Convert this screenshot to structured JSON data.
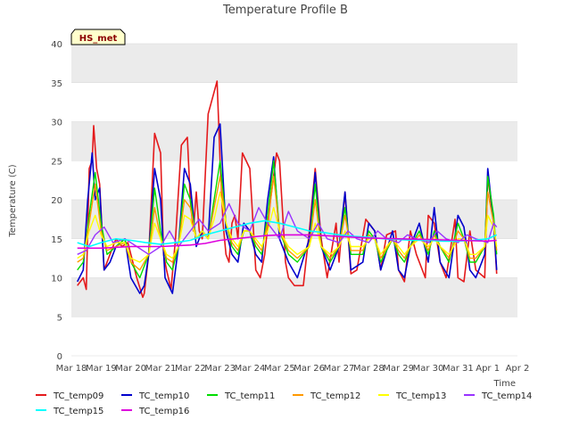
{
  "chart_data": {
    "type": "line",
    "title": "Temperature Profile B",
    "xlabel": "Time",
    "ylabel": "Temperature (C)",
    "badge": "HS_met",
    "ylim": [
      0,
      40
    ],
    "yticks": [
      0,
      5,
      10,
      15,
      20,
      25,
      30,
      35,
      40
    ],
    "xlim": [
      0,
      15
    ],
    "xticks": [
      "Mar 18",
      "Mar 19",
      "Mar 20",
      "Mar 21",
      "Mar 22",
      "Mar 23",
      "Mar 24",
      "Mar 25",
      "Mar 26",
      "Mar 27",
      "Mar 28",
      "Mar 29",
      "Mar 30",
      "Mar 31",
      "Apr 1",
      "Apr 2"
    ],
    "grid": "horizontal bands",
    "legend_position": "bottom",
    "series": [
      {
        "name": "TC_temp09",
        "color": "#e41a1c",
        "width": 1.6,
        "x": [
          0.2,
          0.4,
          0.5,
          0.6,
          0.7,
          0.75,
          0.85,
          0.95,
          1.1,
          1.3,
          1.5,
          1.7,
          1.9,
          2.2,
          2.4,
          2.45,
          2.6,
          2.8,
          3.0,
          3.1,
          3.2,
          3.35,
          3.5,
          3.7,
          3.9,
          4.0,
          4.1,
          4.2,
          4.3,
          4.4,
          4.6,
          4.9,
          5.0,
          5.1,
          5.2,
          5.3,
          5.4,
          5.5,
          5.6,
          5.75,
          6.0,
          6.2,
          6.35,
          6.5,
          6.7,
          6.9,
          7.0,
          7.2,
          7.3,
          7.5,
          7.8,
          8.0,
          8.2,
          8.4,
          8.6,
          8.9,
          9.0,
          9.2,
          9.4,
          9.6,
          9.9,
          10.2,
          10.4,
          10.6,
          10.9,
          11.0,
          11.2,
          11.4,
          11.6,
          11.9,
          12.0,
          12.2,
          12.4,
          12.6,
          12.9,
          13.0,
          13.2,
          13.4,
          13.6,
          13.9,
          14.0,
          14.2,
          14.3
        ],
        "y": [
          9,
          10,
          8.5,
          24,
          25,
          29.5,
          24,
          22,
          11,
          13,
          15,
          14,
          14.5,
          10,
          7.5,
          8,
          13,
          28.5,
          26,
          13,
          11,
          8.5,
          15,
          27,
          28,
          20,
          16,
          21,
          16,
          15,
          31,
          35.2,
          25,
          17,
          13,
          12,
          17,
          18,
          15,
          26,
          24,
          11,
          10,
          13,
          20,
          26,
          25,
          12,
          10,
          9,
          9,
          16,
          24,
          15,
          10,
          17,
          12,
          21,
          10.5,
          11,
          17.5,
          16,
          11,
          15.5,
          16,
          11,
          9.5,
          16,
          13,
          10,
          18,
          17,
          12,
          10,
          17.5,
          10,
          9.5,
          16,
          11,
          10,
          23,
          17,
          10.5
        ]
      },
      {
        "name": "TC_temp10",
        "color": "#0000cc",
        "width": 1.6,
        "x": [
          0.2,
          0.4,
          0.55,
          0.7,
          0.8,
          0.95,
          1.1,
          1.3,
          1.5,
          1.8,
          2.0,
          2.3,
          2.45,
          2.6,
          2.8,
          3.0,
          3.15,
          3.4,
          3.6,
          3.8,
          4.0,
          4.2,
          4.4,
          4.6,
          4.8,
          5.0,
          5.2,
          5.4,
          5.6,
          5.8,
          6.0,
          6.2,
          6.4,
          6.6,
          6.8,
          7.0,
          7.3,
          7.6,
          8.0,
          8.2,
          8.4,
          8.7,
          9.0,
          9.2,
          9.4,
          9.8,
          10.0,
          10.2,
          10.4,
          10.8,
          11.0,
          11.2,
          11.4,
          11.7,
          12.0,
          12.2,
          12.4,
          12.7,
          13.0,
          13.2,
          13.4,
          13.6,
          13.9,
          14.0,
          14.2,
          14.3
        ],
        "y": [
          9.5,
          11,
          20,
          26,
          20,
          21.5,
          11,
          12,
          14,
          15,
          10,
          8,
          9,
          13,
          24,
          20,
          10,
          8,
          14,
          24,
          22,
          14,
          16,
          15,
          28,
          29.7,
          16,
          13,
          12,
          17,
          16,
          13,
          12,
          20,
          25.5,
          15,
          12,
          10,
          15,
          23.5,
          14,
          11,
          14,
          21,
          11,
          12,
          17,
          16,
          11,
          16,
          11,
          10,
          14,
          17,
          12,
          19,
          12,
          10,
          18,
          16.5,
          11,
          10,
          13,
          24,
          17,
          11
        ]
      },
      {
        "name": "TC_temp11",
        "color": "#00dd00",
        "width": 1.4,
        "x": [
          0.2,
          0.4,
          0.6,
          0.8,
          1.0,
          1.2,
          1.5,
          1.8,
          2.0,
          2.3,
          2.6,
          2.8,
          3.0,
          3.2,
          3.4,
          3.6,
          3.8,
          4.0,
          4.2,
          4.4,
          4.6,
          4.8,
          5.0,
          5.2,
          5.4,
          5.6,
          5.8,
          6.0,
          6.2,
          6.4,
          6.6,
          6.8,
          7.0,
          7.3,
          7.6,
          8.0,
          8.2,
          8.4,
          8.7,
          9.0,
          9.2,
          9.4,
          9.8,
          10.0,
          10.2,
          10.4,
          10.8,
          11.0,
          11.2,
          11.4,
          11.7,
          12.0,
          12.2,
          12.4,
          12.7,
          13.0,
          13.2,
          13.4,
          13.6,
          13.9,
          14.0,
          14.2,
          14.3
        ],
        "y": [
          11,
          12,
          18,
          23.5,
          17,
          13,
          14,
          15,
          12,
          10,
          13,
          21.5,
          16,
          12,
          11,
          14,
          22,
          20,
          15,
          16,
          15,
          20,
          25,
          17,
          14,
          13,
          16,
          16,
          14,
          13,
          18,
          25,
          16,
          13,
          12,
          14,
          22,
          14,
          12,
          14,
          19,
          13,
          13,
          16,
          15,
          12,
          15,
          13,
          12,
          14,
          16,
          13,
          16,
          14,
          12,
          17,
          15,
          12,
          12,
          14,
          23,
          18,
          13
        ]
      },
      {
        "name": "TC_temp12",
        "color": "#ff9900",
        "width": 1.4,
        "x": [
          0.2,
          0.4,
          0.6,
          0.8,
          1.0,
          1.2,
          1.5,
          1.8,
          2.0,
          2.3,
          2.6,
          2.8,
          3.0,
          3.2,
          3.4,
          3.6,
          3.8,
          4.0,
          4.2,
          4.4,
          4.6,
          4.8,
          5.0,
          5.2,
          5.4,
          5.6,
          5.8,
          6.0,
          6.2,
          6.4,
          6.6,
          6.8,
          7.0,
          7.3,
          7.6,
          8.0,
          8.2,
          8.4,
          8.7,
          9.0,
          9.2,
          9.4,
          9.8,
          10.0,
          10.2,
          10.4,
          10.8,
          11.0,
          11.2,
          11.4,
          11.7,
          12.0,
          12.2,
          12.4,
          12.7,
          13.0,
          13.2,
          13.4,
          13.6,
          13.9,
          14.0,
          14.2,
          14.3
        ],
        "y": [
          12,
          12.5,
          17,
          22,
          16,
          13.5,
          14,
          14.5,
          12,
          11,
          13,
          19,
          15,
          12.5,
          12,
          14,
          20,
          19,
          15,
          16,
          15,
          19,
          23,
          17,
          14.5,
          13.5,
          16,
          16,
          14.5,
          13.5,
          17,
          23,
          16,
          13.5,
          12.5,
          14,
          20,
          14,
          12.5,
          14,
          18,
          13.5,
          13.5,
          15.5,
          15,
          12.5,
          15,
          13.5,
          12.5,
          14,
          15.5,
          13.5,
          15.5,
          14,
          12.5,
          16,
          15,
          12.5,
          12.5,
          14,
          21,
          17,
          13.5
        ]
      },
      {
        "name": "TC_temp13",
        "color": "#ffff00",
        "width": 1.4,
        "x": [
          0.2,
          0.4,
          0.6,
          0.8,
          1.0,
          1.2,
          1.5,
          1.8,
          2.0,
          2.3,
          2.6,
          2.8,
          3.0,
          3.2,
          3.4,
          3.6,
          3.8,
          4.0,
          4.2,
          4.4,
          4.6,
          4.8,
          5.0,
          5.2,
          5.4,
          5.6,
          5.8,
          6.0,
          6.2,
          6.4,
          6.6,
          6.8,
          7.0,
          7.3,
          7.6,
          8.0,
          8.2,
          8.4,
          8.7,
          9.0,
          9.2,
          9.4,
          9.8,
          10.0,
          10.2,
          10.4,
          10.8,
          11.0,
          11.2,
          11.4,
          11.7,
          12.0,
          12.2,
          12.4,
          12.7,
          13.0,
          13.2,
          13.4,
          13.6,
          13.9,
          14.0,
          14.2,
          14.3
        ],
        "y": [
          12.5,
          13,
          16,
          18,
          15.5,
          14,
          14.5,
          14.5,
          12.5,
          12,
          13,
          17,
          15,
          13,
          12.5,
          14,
          18,
          17.5,
          15,
          16,
          15,
          17.5,
          21,
          17,
          15,
          14,
          16,
          16,
          15,
          14,
          16,
          19,
          16,
          14,
          13,
          14,
          17,
          14,
          13,
          14,
          16,
          14,
          14,
          15,
          15,
          13,
          15,
          14,
          13,
          14,
          15,
          14,
          15,
          14,
          13,
          15,
          15,
          13,
          13,
          14,
          18,
          16.5,
          14
        ]
      },
      {
        "name": "TC_temp14",
        "color": "#9933ff",
        "width": 1.4,
        "x": [
          0.2,
          0.5,
          0.8,
          1.1,
          1.4,
          1.8,
          2.2,
          2.6,
          3.0,
          3.3,
          3.6,
          4.0,
          4.3,
          4.6,
          5.0,
          5.3,
          5.6,
          6.0,
          6.3,
          6.6,
          7.0,
          7.3,
          7.6,
          8.0,
          8.3,
          8.6,
          9.0,
          9.3,
          9.6,
          10.0,
          10.3,
          10.6,
          11.0,
          11.3,
          11.6,
          12.0,
          12.3,
          12.6,
          13.0,
          13.3,
          13.6,
          14.0,
          14.2,
          14.3
        ],
        "y": [
          13,
          13.5,
          15.5,
          16.5,
          14.5,
          15,
          14,
          13,
          14,
          16,
          14,
          16,
          17.5,
          16,
          17,
          19.5,
          17,
          16,
          19,
          17,
          15,
          18.5,
          16,
          15,
          17,
          15,
          14.5,
          16,
          15,
          14.5,
          16,
          15,
          14.5,
          15.5,
          15,
          14.5,
          16,
          15,
          14.5,
          15.5,
          15,
          14.5,
          17,
          16.5
        ]
      },
      {
        "name": "TC_temp15",
        "color": "#00ffff",
        "width": 1.6,
        "x": [
          0.2,
          0.6,
          1.0,
          1.5,
          2.0,
          2.5,
          3.0,
          3.5,
          4.0,
          4.5,
          5.0,
          5.5,
          6.0,
          6.5,
          7.0,
          7.5,
          8.0,
          8.5,
          9.0,
          9.5,
          10.0,
          10.5,
          11.0,
          11.5,
          12.0,
          12.5,
          13.0,
          13.5,
          14.0,
          14.3
        ],
        "y": [
          14.5,
          14,
          14.5,
          15,
          14.8,
          14.5,
          14.3,
          14.5,
          14.8,
          15.5,
          16,
          16.5,
          17,
          17.3,
          17,
          16.5,
          16,
          15.8,
          15.5,
          15.3,
          15.2,
          15,
          14.9,
          14.8,
          14.8,
          14.7,
          14.7,
          14.8,
          15,
          15.5
        ]
      },
      {
        "name": "TC_temp16",
        "color": "#dd00dd",
        "width": 1.6,
        "x": [
          0.2,
          1.0,
          2.0,
          3.0,
          4.0,
          4.5,
          5.0,
          5.5,
          6.0,
          6.5,
          7.0,
          8.0,
          9.0,
          10.0,
          11.0,
          12.0,
          13.0,
          14.0,
          14.3
        ],
        "y": [
          13.8,
          13.8,
          14,
          14,
          14.2,
          14.4,
          14.8,
          15,
          15.2,
          15.4,
          15.5,
          15.5,
          15.3,
          15.1,
          15,
          14.9,
          14.8,
          14.7,
          14.8
        ]
      }
    ]
  }
}
